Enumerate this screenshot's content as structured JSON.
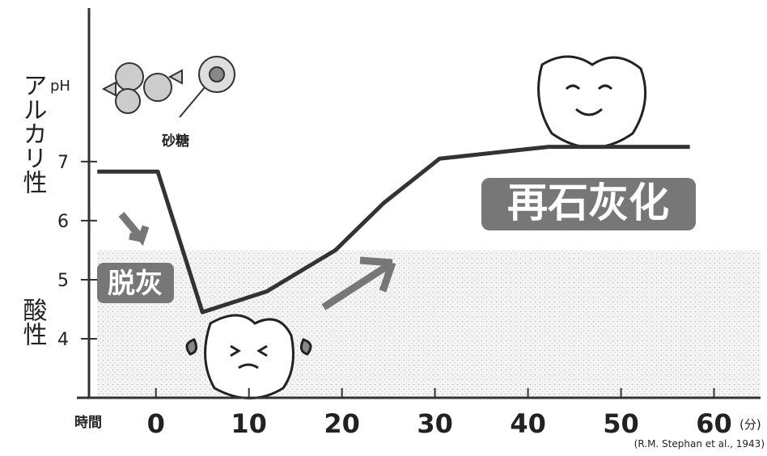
{
  "chart_data": {
    "type": "line",
    "y_label_top": "アルカリ性",
    "y_label_bottom": "酸性",
    "y_unit": "pH",
    "x_label": "時間",
    "x_unit": "(分)",
    "source": "(R.M. Stephan et al., 1943)",
    "sugar_label": "砂糖",
    "demineralization_label": "脱灰",
    "remineralization_label": "再石灰化",
    "x": [
      -6.3,
      0.2,
      5,
      11.9,
      19.3,
      24.5,
      30.5,
      42.2,
      57.4
    ],
    "values": [
      6.83,
      6.83,
      4.45,
      4.8,
      5.5,
      6.3,
      7.05,
      7.25,
      7.25
    ],
    "color": "#333333",
    "xlim": [
      -8.5,
      65
    ],
    "ylim": [
      3,
      9.6
    ],
    "xticks": [
      0,
      10,
      20,
      30,
      40,
      50,
      60
    ],
    "yticks": [
      4,
      5,
      6,
      7
    ],
    "shaded_band": [
      3,
      5.5
    ]
  }
}
